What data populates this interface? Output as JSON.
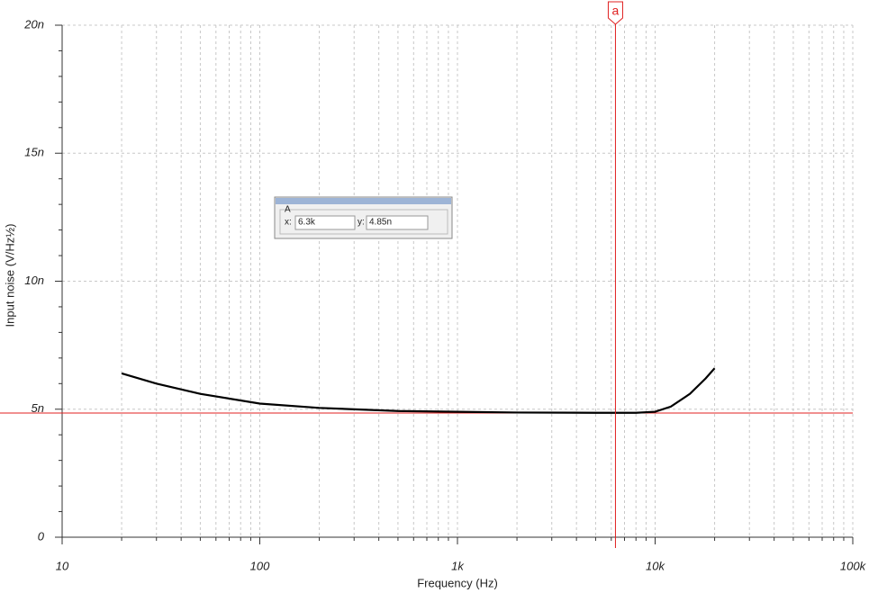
{
  "chart_data": {
    "type": "line",
    "ylabel": "Input noise (V/Hz½)",
    "xlabel": "Frequency (Hz)",
    "x": [
      20,
      30,
      50,
      100,
      200,
      500,
      1000,
      2000,
      5000,
      8000,
      10000,
      12000,
      15000,
      18000,
      20000
    ],
    "series": [
      {
        "name": "Input noise",
        "color": "#000000",
        "values": [
          6.4e-09,
          6e-09,
          5.6e-09,
          5.22e-09,
          5.05e-09,
          4.93e-09,
          4.9e-09,
          4.87e-09,
          4.86e-09,
          4.86e-09,
          4.9e-09,
          5.1e-09,
          5.6e-09,
          6.2e-09,
          6.6e-09
        ]
      }
    ],
    "xscale": "log",
    "xlim": [
      10,
      100000
    ],
    "xticks": [
      10,
      100,
      {
        "value": 1000,
        "label": "1k"
      },
      {
        "value": 10000,
        "label": "10k"
      },
      {
        "value": 100000,
        "label": "100k"
      }
    ],
    "xminorticks": [
      20,
      30,
      40,
      50,
      60,
      70,
      80,
      90,
      200,
      300,
      400,
      500,
      600,
      700,
      800,
      900,
      2000,
      3000,
      4000,
      5000,
      6000,
      7000,
      8000,
      9000,
      20000,
      30000,
      40000,
      50000,
      60000,
      70000,
      80000,
      90000
    ],
    "ylim": [
      0,
      2e-08
    ],
    "yticks": [
      0,
      {
        "value": 5e-09,
        "label": "5n"
      },
      {
        "value": 1e-08,
        "label": "10n"
      },
      {
        "value": 1.5e-08,
        "label": "15n"
      },
      {
        "value": 2e-08,
        "label": "20n"
      }
    ],
    "yminorticks": [
      1e-09,
      2e-09,
      3e-09,
      4e-09,
      6e-09,
      7e-09,
      8e-09,
      9e-09,
      1.1e-08,
      1.2e-08,
      1.3e-08,
      1.4e-08,
      1.6e-08,
      1.7e-08,
      1.8e-08,
      1.9e-08
    ],
    "grid": true,
    "cursor": {
      "label": "a",
      "color": "#e02020",
      "x": 6300,
      "y": 4.85e-09,
      "box_title": "A",
      "x_label": "x:",
      "x_value_label": "6.3k",
      "y_label": "y:",
      "y_value_label": "4.85n"
    }
  }
}
